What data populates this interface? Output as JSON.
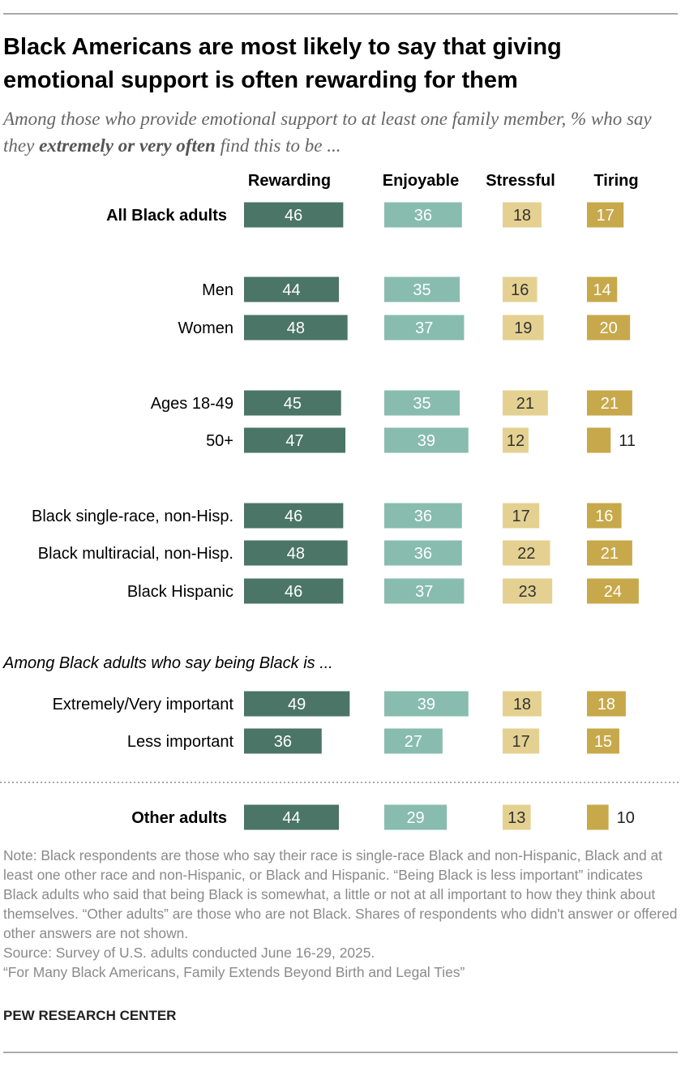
{
  "chart_data": {
    "type": "bar",
    "title": "Black Americans are most likely to say that giving emotional support is often rewarding for them",
    "subtitle": [
      "Among those who provide emotional support to at least one family member, % who say they ",
      "extremely or very often",
      " find this to be ..."
    ],
    "categories": [
      "All Black adults",
      "Men",
      "Women",
      "Ages 18-49",
      "50+",
      "Black single-race, non-Hisp.",
      "Black multiracial, non-Hisp.",
      "Black Hispanic",
      "Extremely/Very important",
      "Less important",
      "Other adults"
    ],
    "group_label": "Among Black adults who say being Black is ...",
    "series": [
      {
        "name": "Rewarding",
        "color": "#4a7567",
        "values": [
          46,
          44,
          48,
          45,
          47,
          46,
          48,
          46,
          49,
          36,
          44
        ]
      },
      {
        "name": "Enjoyable",
        "color": "#88bcae",
        "values": [
          36,
          35,
          37,
          35,
          39,
          36,
          36,
          37,
          39,
          27,
          29
        ]
      },
      {
        "name": "Stressful",
        "color": "#e4d191",
        "values": [
          18,
          16,
          19,
          21,
          12,
          17,
          22,
          23,
          18,
          17,
          13
        ]
      },
      {
        "name": "Tiring",
        "color": "#c7a84a",
        "values": [
          17,
          14,
          20,
          21,
          11,
          16,
          21,
          24,
          18,
          15,
          10
        ]
      }
    ],
    "note": "Note: Black respondents are those who say their race is single-race Black and non-Hispanic, Black and at least one other race and non-Hispanic, or Black and Hispanic. “Being Black is less important” indicates Black adults who said that being Black is somewhat, a little or not at all important to how they think about themselves. “Other adults” are those who are not Black. Shares of respondents who didn't answer or offered other answers are not shown.",
    "source": "Source: Survey of U.S. adults conducted June 16-29, 2025.",
    "report": "“For Many Black Americans, Family Extends Beyond Birth and Legal Ties”",
    "footer": "PEW RESEARCH CENTER"
  }
}
